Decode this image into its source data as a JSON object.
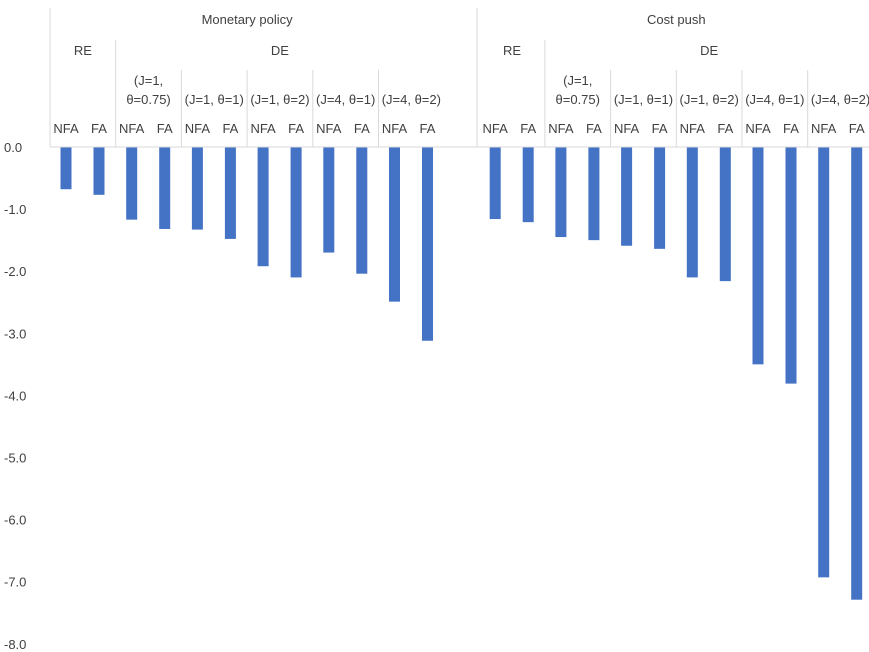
{
  "chart_data": {
    "type": "bar",
    "ylim": [
      -8,
      0
    ],
    "y_tick_step": 1,
    "y_tick_labels": [
      "0.0",
      "-1.0",
      "-2.0",
      "-3.0",
      "-4.0",
      "-5.0",
      "-6.0",
      "-7.0",
      "-8.0"
    ],
    "grid": false,
    "bar_color": "#4472C4",
    "separator_color": "#D9D9D9",
    "groups": [
      {
        "name": "Monetary policy",
        "subgroups": [
          {
            "name": "RE",
            "cells": [
              {
                "param_lines": [],
                "categories": [
                  "NFA",
                  "FA"
                ],
                "values": [
                  -0.68,
                  -0.77
                ]
              }
            ]
          },
          {
            "name": "DE",
            "cells": [
              {
                "param_lines": [
                  "(J=1,",
                  "θ=0.75)"
                ],
                "categories": [
                  "NFA",
                  "FA"
                ],
                "values": [
                  -1.17,
                  -1.32
                ]
              },
              {
                "param_lines": [
                  "(J=1, θ=1)"
                ],
                "categories": [
                  "NFA",
                  "FA"
                ],
                "values": [
                  -1.33,
                  -1.48
                ]
              },
              {
                "param_lines": [
                  "(J=1, θ=2)"
                ],
                "categories": [
                  "NFA",
                  "FA"
                ],
                "values": [
                  -1.92,
                  -2.1
                ]
              },
              {
                "param_lines": [
                  "(J=4, θ=1)"
                ],
                "categories": [
                  "NFA",
                  "FA"
                ],
                "values": [
                  -1.7,
                  -2.04
                ]
              },
              {
                "param_lines": [
                  "(J=4, θ=2)"
                ],
                "categories": [
                  "NFA",
                  "FA"
                ],
                "values": [
                  -2.49,
                  -3.12
                ]
              }
            ]
          }
        ]
      },
      {
        "name": "Cost push",
        "subgroups": [
          {
            "name": "RE",
            "cells": [
              {
                "param_lines": [],
                "categories": [
                  "NFA",
                  "FA"
                ],
                "values": [
                  -1.16,
                  -1.21
                ]
              }
            ]
          },
          {
            "name": "DE",
            "cells": [
              {
                "param_lines": [
                  "(J=1,",
                  "θ=0.75)"
                ],
                "categories": [
                  "NFA",
                  "FA"
                ],
                "values": [
                  -1.45,
                  -1.5
                ]
              },
              {
                "param_lines": [
                  "(J=1, θ=1)"
                ],
                "categories": [
                  "NFA",
                  "FA"
                ],
                "values": [
                  -1.59,
                  -1.64
                ]
              },
              {
                "param_lines": [
                  "(J=1, θ=2)"
                ],
                "categories": [
                  "NFA",
                  "FA"
                ],
                "values": [
                  -2.1,
                  -2.16
                ]
              },
              {
                "param_lines": [
                  "(J=4, θ=1)"
                ],
                "categories": [
                  "NFA",
                  "FA"
                ],
                "values": [
                  -3.5,
                  -3.81
                ]
              },
              {
                "param_lines": [
                  "(J=4, θ=2)"
                ],
                "categories": [
                  "NFA",
                  "FA"
                ],
                "values": [
                  -6.93,
                  -7.29
                ]
              }
            ]
          }
        ]
      }
    ]
  }
}
